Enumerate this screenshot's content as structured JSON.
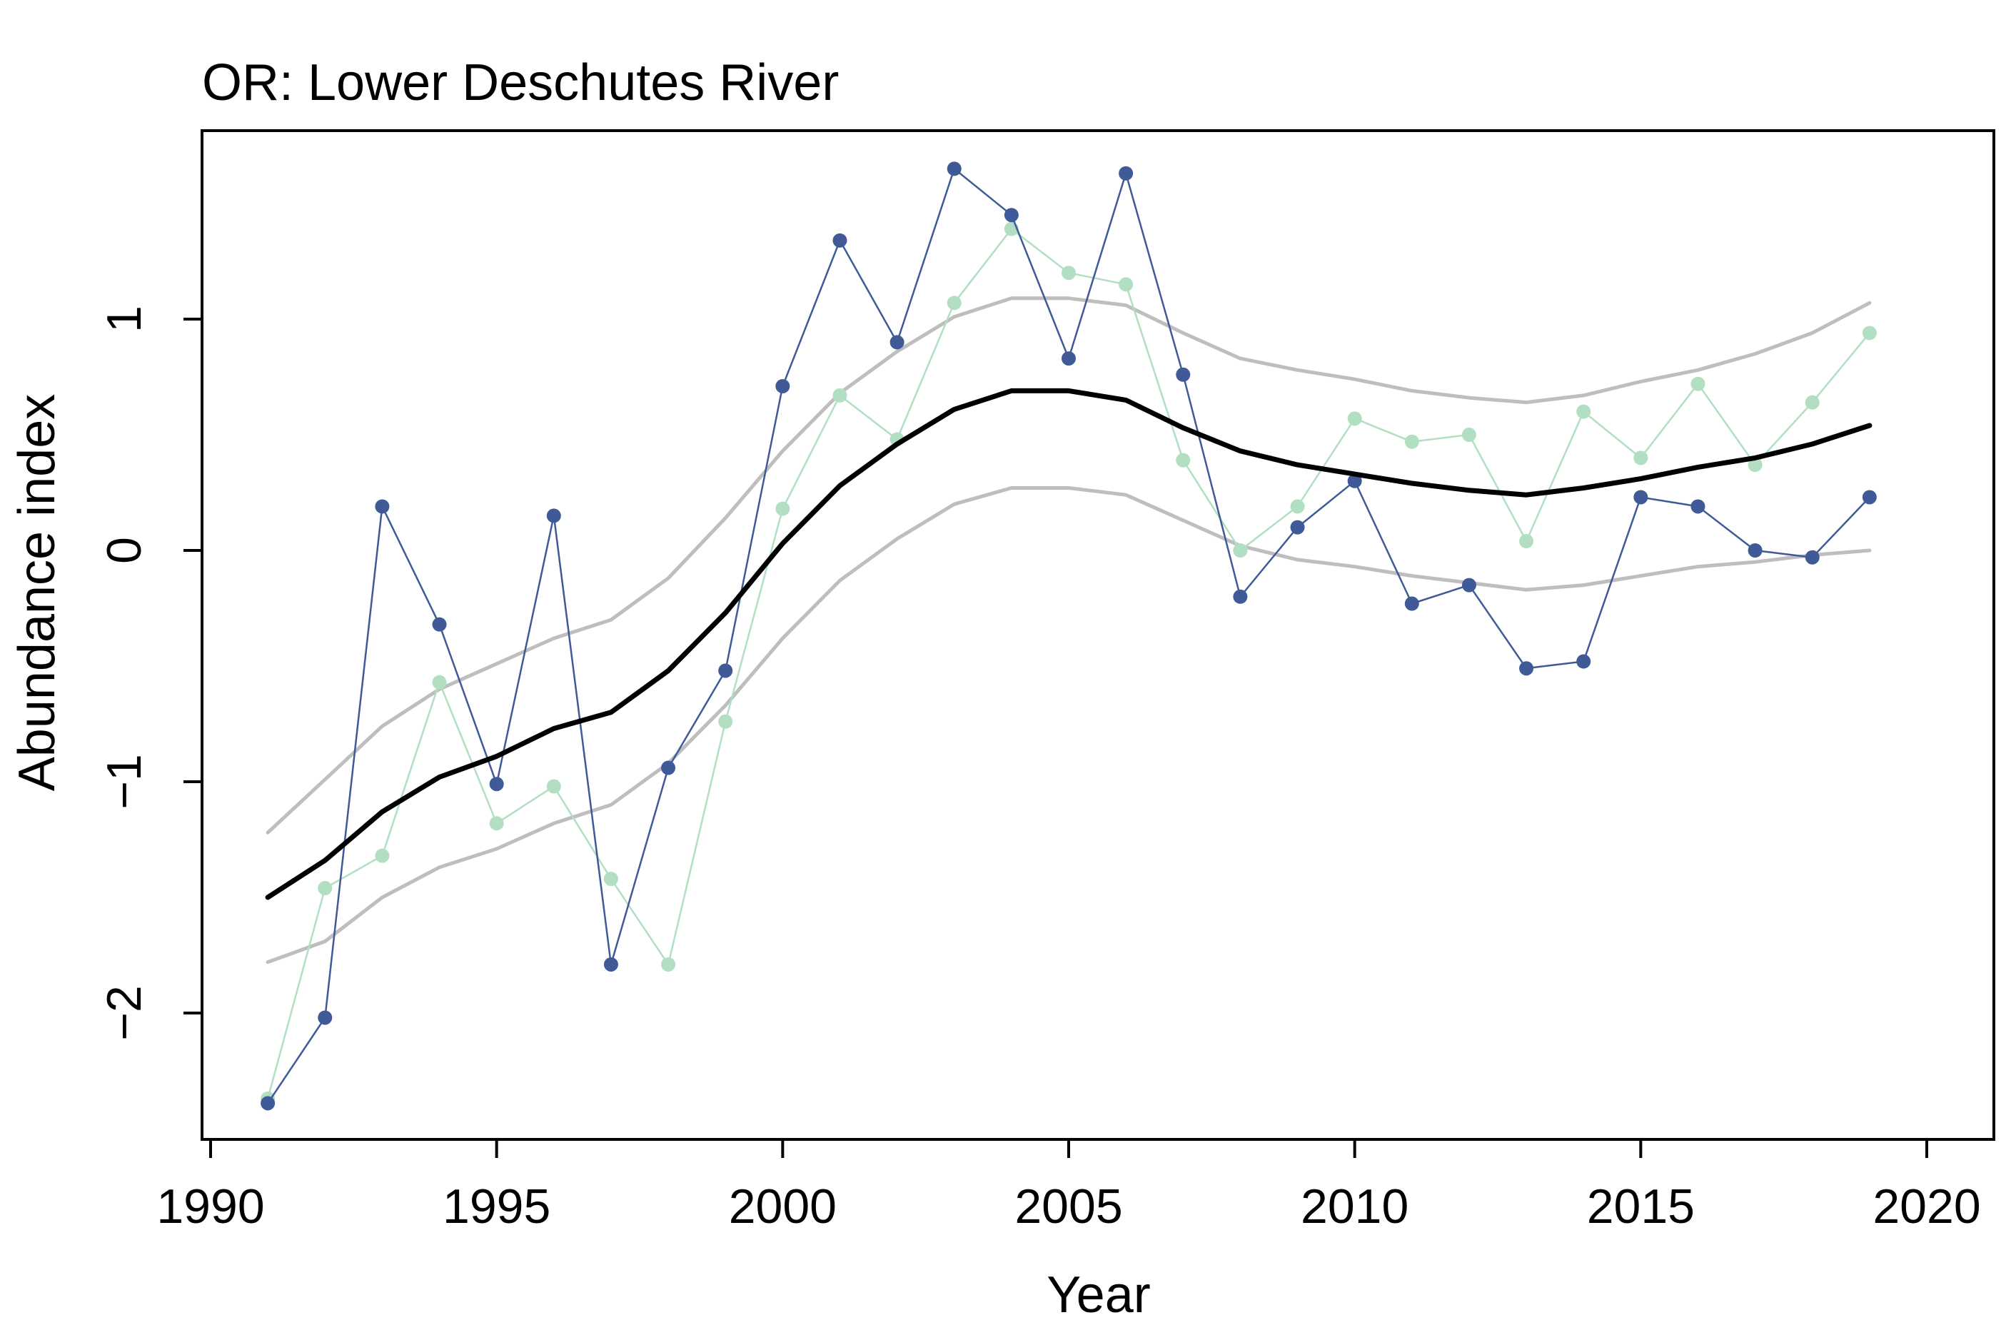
{
  "chart_data": {
    "type": "line",
    "title": "OR: Lower Deschutes River",
    "xlabel": "Year",
    "ylabel": "Abundance index",
    "xlim": [
      1990,
      2020
    ],
    "ylim": [
      -2.5,
      1.8
    ],
    "xticks": [
      1990,
      1995,
      2000,
      2005,
      2010,
      2015,
      2020
    ],
    "yticks": [
      -2,
      -1,
      0,
      1
    ],
    "grid": false,
    "x": [
      1991,
      1992,
      1993,
      1994,
      1995,
      1996,
      1997,
      1998,
      1999,
      2000,
      2001,
      2002,
      2003,
      2004,
      2005,
      2006,
      2007,
      2008,
      2009,
      2010,
      2011,
      2012,
      2013,
      2014,
      2015,
      2016,
      2017,
      2018,
      2019
    ],
    "series": [
      {
        "role": "observed-dark",
        "color": "#3f5a96",
        "markers": true,
        "values": [
          -2.39,
          -2.02,
          0.19,
          -0.32,
          -1.01,
          0.15,
          -1.79,
          -0.94,
          -0.52,
          0.71,
          1.34,
          0.9,
          1.65,
          1.45,
          0.83,
          1.63,
          0.76,
          -0.2,
          0.1,
          0.3,
          -0.23,
          -0.15,
          -0.51,
          -0.48,
          0.23,
          0.19,
          0.0,
          -0.03,
          0.23
        ]
      },
      {
        "role": "observed-light",
        "color": "#b2dfc2",
        "markers": true,
        "values": [
          -2.37,
          -1.46,
          -1.32,
          -0.57,
          -1.18,
          -1.02,
          -1.42,
          -1.79,
          -0.74,
          0.18,
          0.67,
          0.48,
          1.07,
          1.39,
          1.2,
          1.15,
          0.39,
          0.0,
          0.19,
          0.57,
          0.47,
          0.5,
          0.04,
          0.6,
          0.4,
          0.72,
          0.37,
          0.64,
          0.94
        ]
      },
      {
        "role": "trend",
        "color": "#000000",
        "markers": false,
        "values": [
          -1.5,
          -1.34,
          -1.13,
          -0.98,
          -0.89,
          -0.77,
          -0.7,
          -0.52,
          -0.27,
          0.03,
          0.28,
          0.46,
          0.61,
          0.69,
          0.69,
          0.65,
          0.53,
          0.43,
          0.37,
          0.33,
          0.29,
          0.26,
          0.24,
          0.27,
          0.31,
          0.36,
          0.4,
          0.46,
          0.54
        ]
      },
      {
        "role": "upper-bound",
        "color": "#bebebe",
        "markers": false,
        "values": [
          -1.22,
          -0.99,
          -0.76,
          -0.6,
          -0.49,
          -0.38,
          -0.3,
          -0.12,
          0.14,
          0.43,
          0.68,
          0.86,
          1.01,
          1.09,
          1.09,
          1.06,
          0.94,
          0.83,
          0.78,
          0.74,
          0.69,
          0.66,
          0.64,
          0.67,
          0.73,
          0.78,
          0.85,
          0.94,
          1.07
        ]
      },
      {
        "role": "lower-bound",
        "color": "#bebebe",
        "markers": false,
        "values": [
          -1.78,
          -1.69,
          -1.5,
          -1.37,
          -1.29,
          -1.18,
          -1.1,
          -0.92,
          -0.67,
          -0.38,
          -0.13,
          0.05,
          0.2,
          0.27,
          0.27,
          0.24,
          0.13,
          0.02,
          -0.04,
          -0.07,
          -0.11,
          -0.14,
          -0.17,
          -0.15,
          -0.11,
          -0.07,
          -0.05,
          -0.02,
          0.0
        ]
      }
    ]
  }
}
